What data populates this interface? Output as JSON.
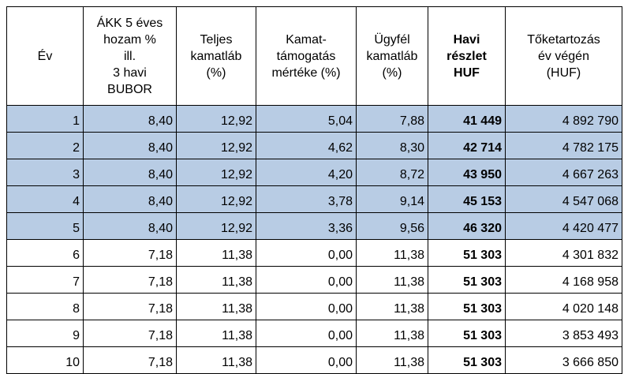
{
  "table": {
    "headers": {
      "ev": [
        "Év"
      ],
      "akk": [
        "ÁKK 5 éves",
        "hozam %",
        "ill.",
        "3 havi",
        "BUBOR"
      ],
      "teljes": [
        "Teljes",
        "kamatláb",
        "(%)"
      ],
      "tamogatas": [
        "Kamat-",
        "támogatás",
        "mértéke (%)"
      ],
      "ugyfel": [
        "Ügyfél",
        "kamatláb",
        "(%)"
      ],
      "havi": [
        "Havi",
        "részlet",
        "HUF"
      ],
      "toke": [
        "Tőketartozás",
        "év végén",
        "(HUF)"
      ]
    },
    "rows": [
      {
        "ev": "1",
        "akk": "8,40",
        "teljes": "12,92",
        "tamogatas": "5,04",
        "ugyfel": "7,88",
        "havi": "41 449",
        "toke": "4 892 790"
      },
      {
        "ev": "2",
        "akk": "8,40",
        "teljes": "12,92",
        "tamogatas": "4,62",
        "ugyfel": "8,30",
        "havi": "42 714",
        "toke": "4 782 175"
      },
      {
        "ev": "3",
        "akk": "8,40",
        "teljes": "12,92",
        "tamogatas": "4,20",
        "ugyfel": "8,72",
        "havi": "43 950",
        "toke": "4 667 263"
      },
      {
        "ev": "4",
        "akk": "8,40",
        "teljes": "12,92",
        "tamogatas": "3,78",
        "ugyfel": "9,14",
        "havi": "45 153",
        "toke": "4 547 068"
      },
      {
        "ev": "5",
        "akk": "8,40",
        "teljes": "12,92",
        "tamogatas": "3,36",
        "ugyfel": "9,56",
        "havi": "46 320",
        "toke": "4 420 477"
      },
      {
        "ev": "6",
        "akk": "7,18",
        "teljes": "11,38",
        "tamogatas": "0,00",
        "ugyfel": "11,38",
        "havi": "51 303",
        "toke": "4 301 832"
      },
      {
        "ev": "7",
        "akk": "7,18",
        "teljes": "11,38",
        "tamogatas": "0,00",
        "ugyfel": "11,38",
        "havi": "51 303",
        "toke": "4 168 958"
      },
      {
        "ev": "8",
        "akk": "7,18",
        "teljes": "11,38",
        "tamogatas": "0,00",
        "ugyfel": "11,38",
        "havi": "51 303",
        "toke": "4 020 148"
      },
      {
        "ev": "9",
        "akk": "7,18",
        "teljes": "11,38",
        "tamogatas": "0,00",
        "ugyfel": "11,38",
        "havi": "51 303",
        "toke": "3 853 493"
      },
      {
        "ev": "10",
        "akk": "7,18",
        "teljes": "11,38",
        "tamogatas": "0,00",
        "ugyfel": "11,38",
        "havi": "51 303",
        "toke": "3 666 850"
      }
    ]
  },
  "colors": {
    "highlight_row": "#b8cce4",
    "plain_row": "#ffffff",
    "grid": "#000000"
  }
}
